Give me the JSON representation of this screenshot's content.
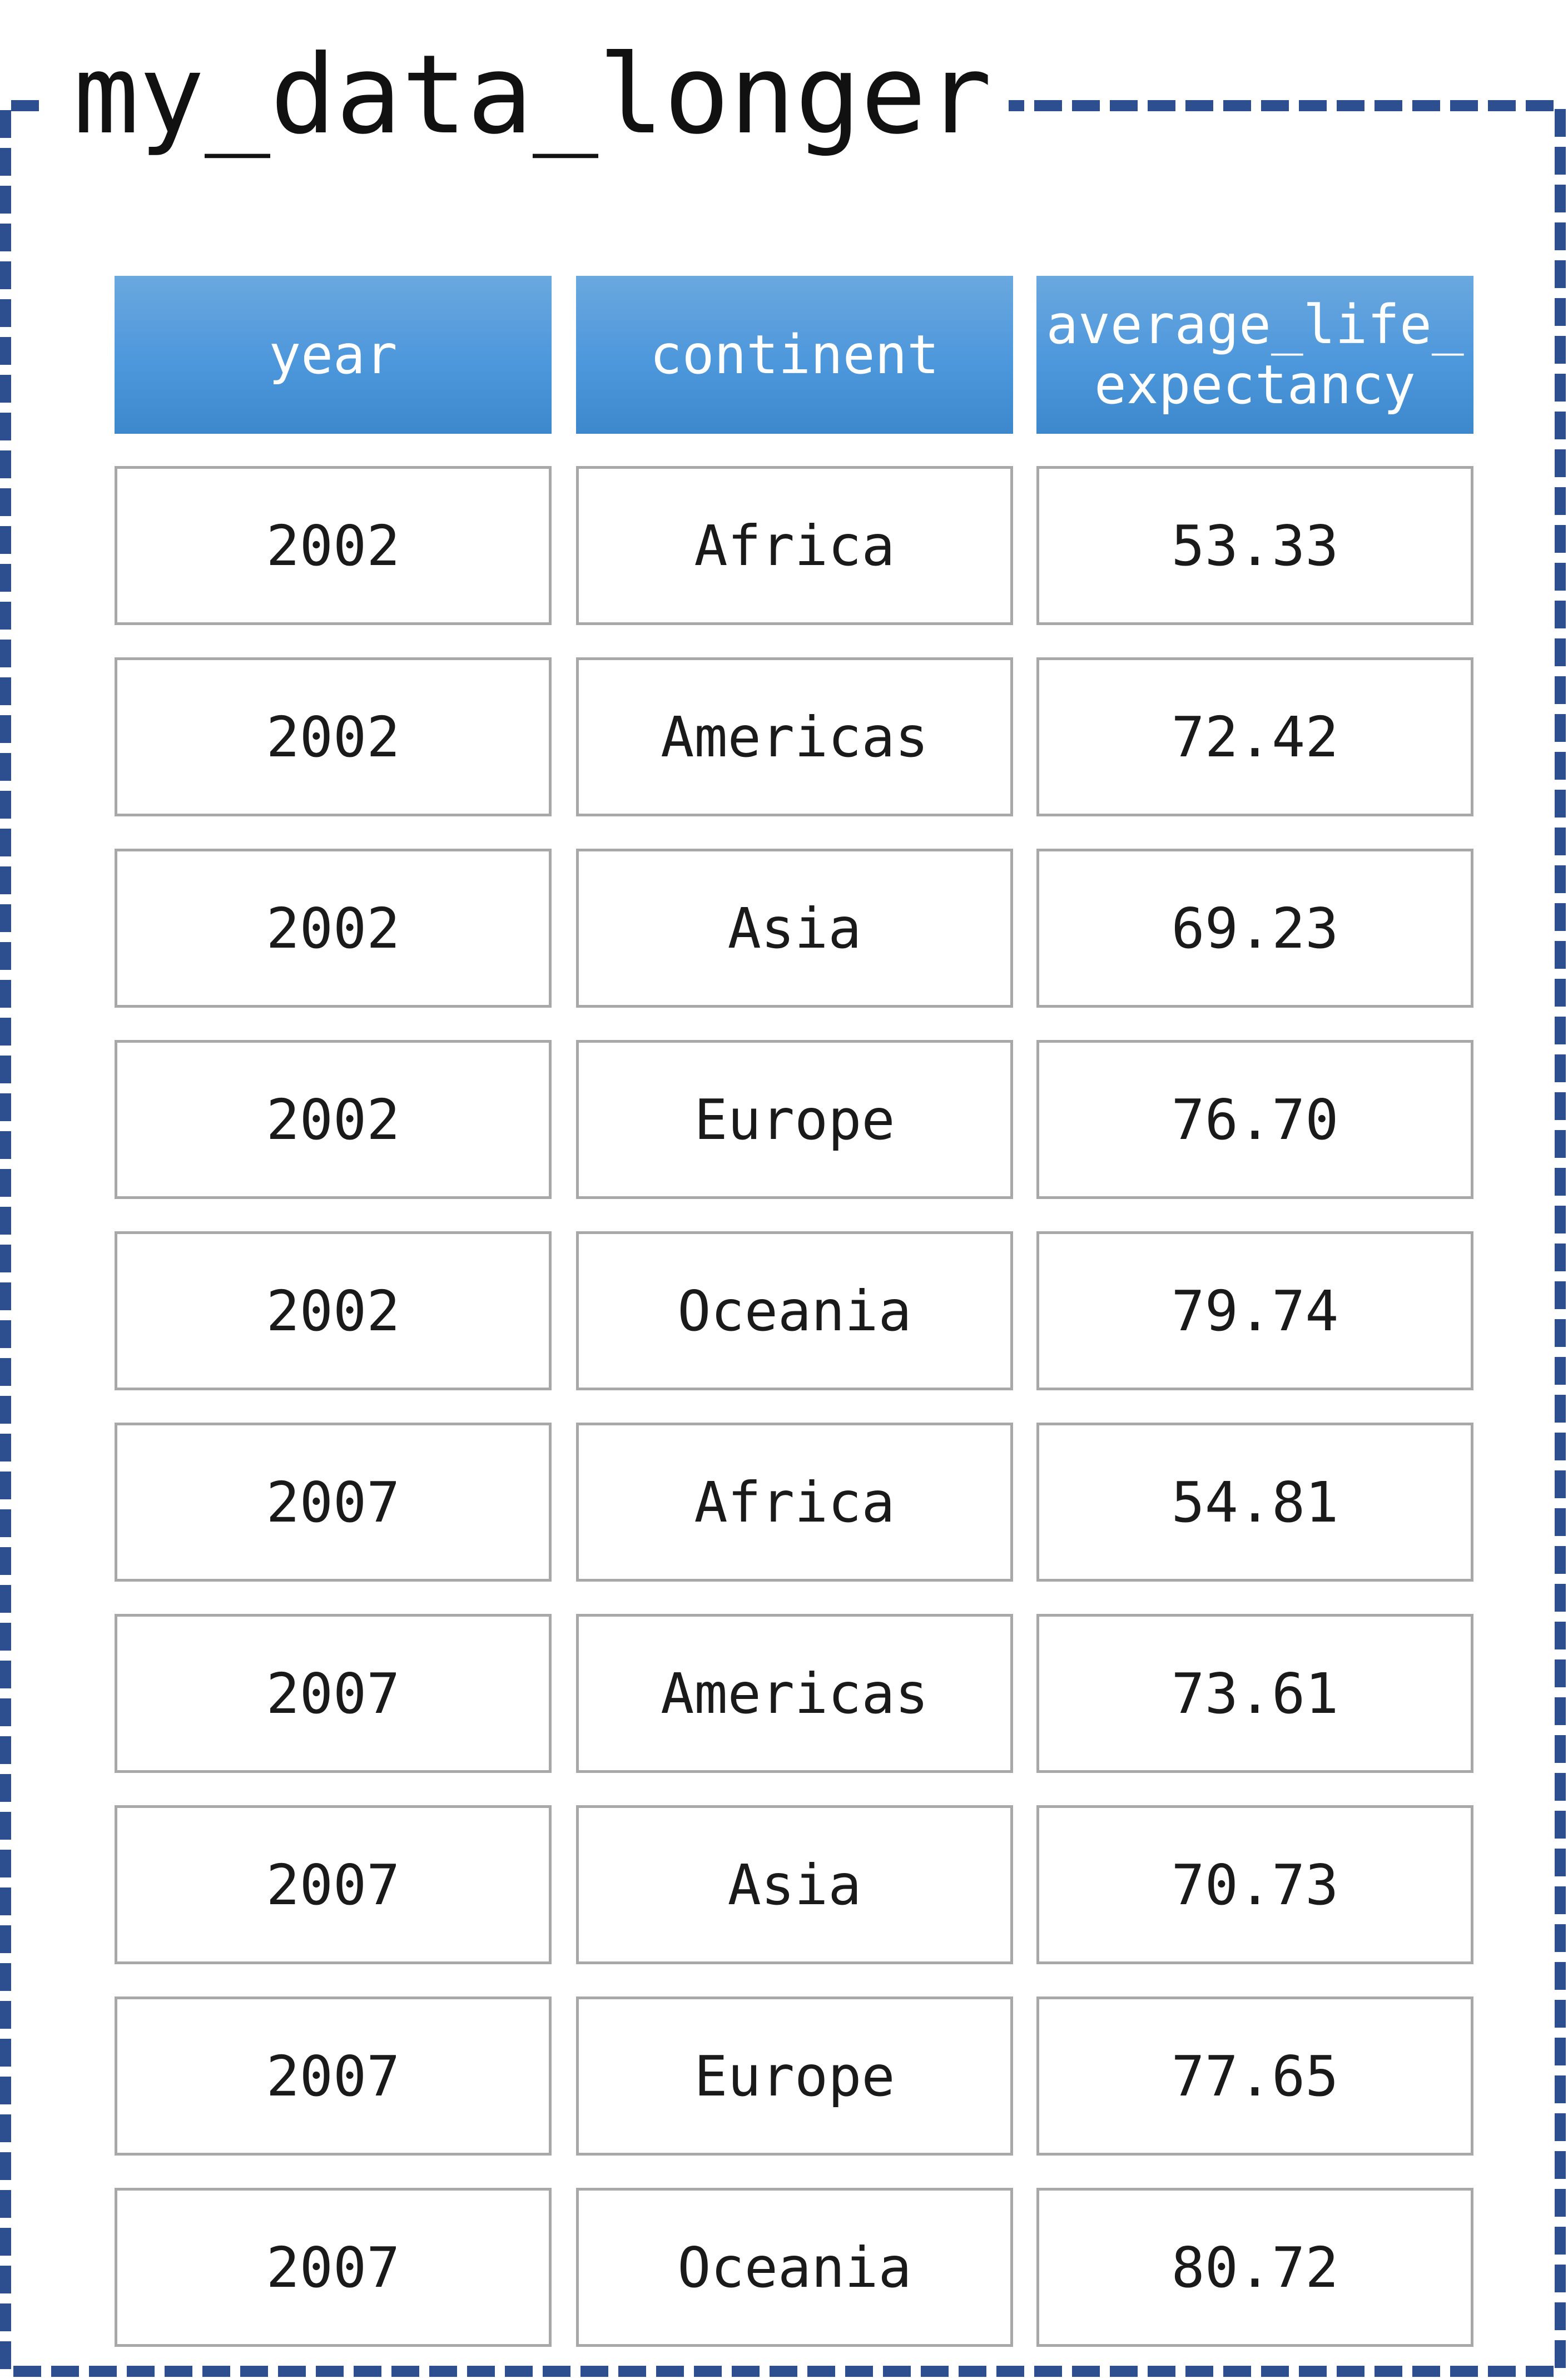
{
  "frame": {
    "title": "my_data_longer",
    "border_color": "#2e4f8f"
  },
  "table": {
    "header_color": "#4d97dc",
    "columns": [
      "year",
      "continent",
      "average_life_\nexpectancy"
    ],
    "rows": [
      [
        "2002",
        "Africa",
        "53.33"
      ],
      [
        "2002",
        "Americas",
        "72.42"
      ],
      [
        "2002",
        "Asia",
        "69.23"
      ],
      [
        "2002",
        "Europe",
        "76.70"
      ],
      [
        "2002",
        "Oceania",
        "79.74"
      ],
      [
        "2007",
        "Africa",
        "54.81"
      ],
      [
        "2007",
        "Americas",
        "73.61"
      ],
      [
        "2007",
        "Asia",
        "70.73"
      ],
      [
        "2007",
        "Europe",
        "77.65"
      ],
      [
        "2007",
        "Oceania",
        "80.72"
      ]
    ]
  }
}
